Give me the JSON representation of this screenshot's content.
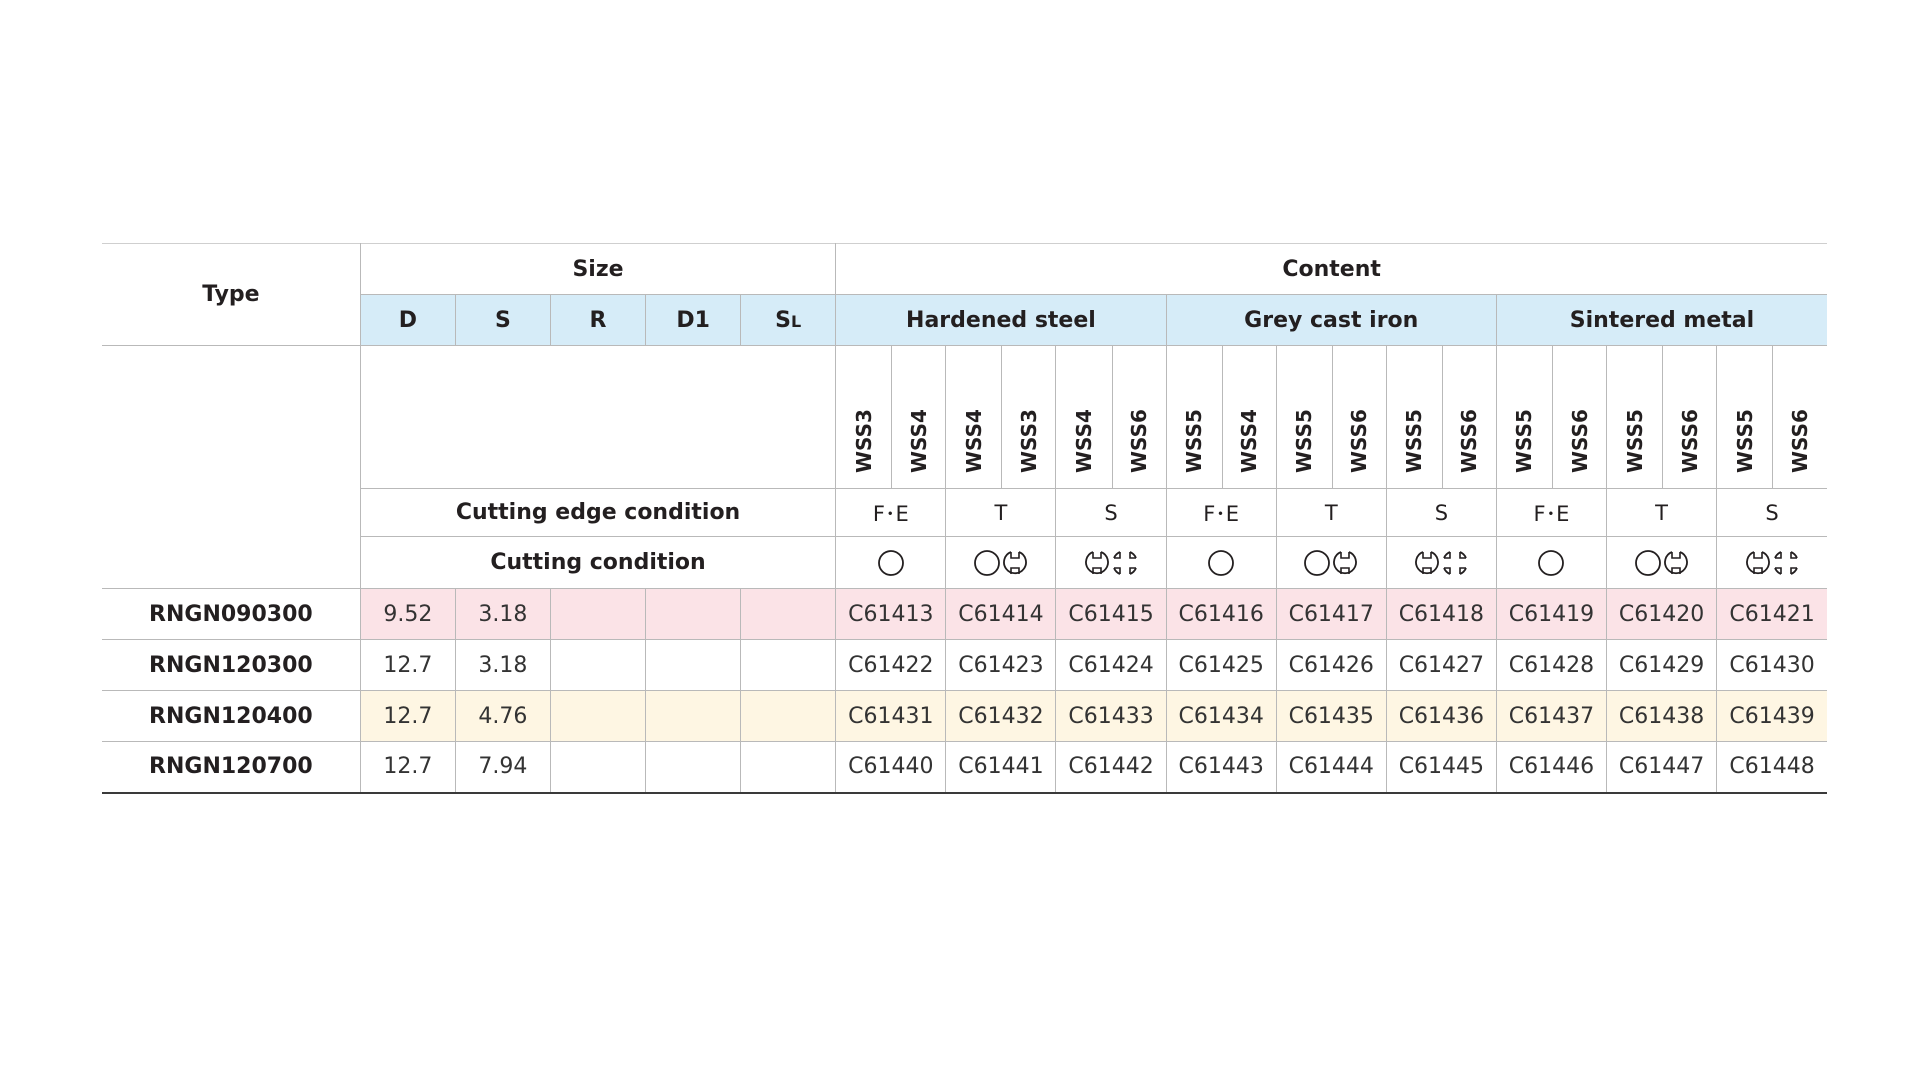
{
  "table": {
    "header": {
      "type_label": "Type",
      "size_label": "Size",
      "content_label": "Content",
      "size_columns": [
        "D",
        "S",
        "R",
        "D1",
        "SL"
      ],
      "size_col_sl_main": "S",
      "size_col_sl_sub": "L",
      "materials": [
        "Hardened steel",
        "Grey cast iron",
        "Sintered metal"
      ]
    },
    "grades": [
      "WSS3",
      "WSS4",
      "WSS4",
      "WSS3",
      "WSS4",
      "WSS6",
      "WSS5",
      "WSS4",
      "WSS5",
      "WSS6",
      "WSS5",
      "WSS6",
      "WSS5",
      "WSS6",
      "WSS5",
      "WSS6",
      "WSS5",
      "WSS6"
    ],
    "cutting_edge_label": "Cutting edge condition",
    "cutting_edge_values": [
      "F･E",
      "T",
      "S",
      "F･E",
      "T",
      "S",
      "F･E",
      "T",
      "S"
    ],
    "cutting_condition_label": "Cutting condition",
    "cutting_condition_icons": [
      "circle-icon",
      "circle-interrupted-icon",
      "interrupted-heavy-icon",
      "circle-icon",
      "circle-interrupted-icon",
      "interrupted-heavy-icon",
      "circle-icon",
      "circle-interrupted-icon",
      "interrupted-heavy-icon"
    ],
    "rows": [
      {
        "type": "RNGN090300",
        "D": "9.52",
        "S": "3.18",
        "R": "",
        "D1": "",
        "SL": "",
        "codes": [
          "C61413",
          "C61414",
          "C61415",
          "C61416",
          "C61417",
          "C61418",
          "C61419",
          "C61420",
          "C61421"
        ],
        "tint": "#fbe3e7"
      },
      {
        "type": "RNGN120300",
        "D": "12.7",
        "S": "3.18",
        "R": "",
        "D1": "",
        "SL": "",
        "codes": [
          "C61422",
          "C61423",
          "C61424",
          "C61425",
          "C61426",
          "C61427",
          "C61428",
          "C61429",
          "C61430"
        ],
        "tint": "#ffffff"
      },
      {
        "type": "RNGN120400",
        "D": "12.7",
        "S": "4.76",
        "R": "",
        "D1": "",
        "SL": "",
        "codes": [
          "C61431",
          "C61432",
          "C61433",
          "C61434",
          "C61435",
          "C61436",
          "C61437",
          "C61438",
          "C61439"
        ],
        "tint": "#fef6e3"
      },
      {
        "type": "RNGN120700",
        "D": "12.7",
        "S": "7.94",
        "R": "",
        "D1": "",
        "SL": "",
        "codes": [
          "C61440",
          "C61441",
          "C61442",
          "C61443",
          "C61444",
          "C61445",
          "C61446",
          "C61447",
          "C61448"
        ],
        "tint": "#ffffff"
      }
    ],
    "header_fill": "#d6ecf8",
    "border_color": "#b9b9b9"
  }
}
